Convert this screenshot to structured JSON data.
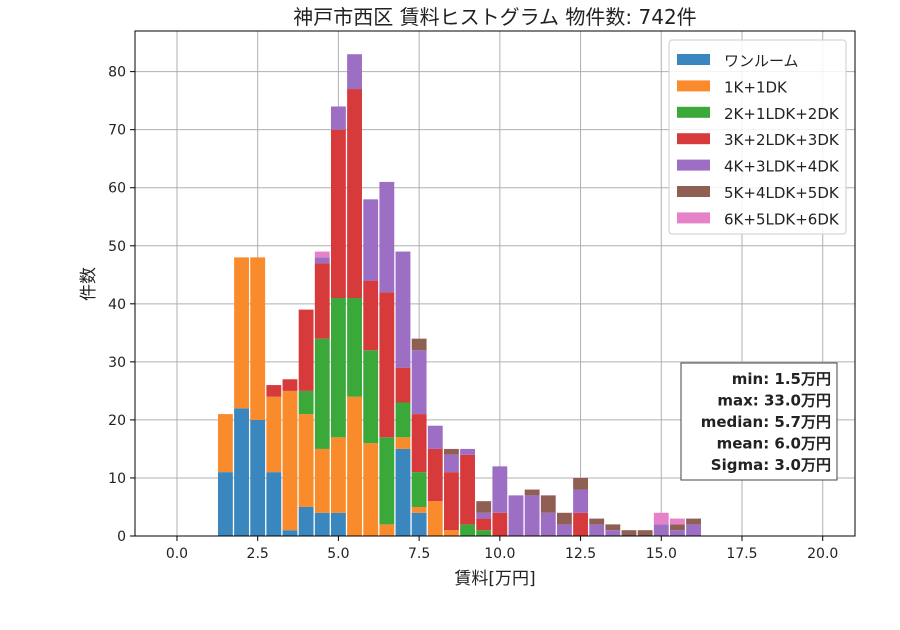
{
  "chart_data": {
    "type": "bar",
    "stacked": true,
    "title": "神戸市西区 賃料ヒストグラム  物件数: 742件",
    "xlabel": "賃料[万円]",
    "ylabel": "件数",
    "xlim": [
      -1.3,
      21.0
    ],
    "ylim": [
      0,
      87
    ],
    "x_ticks": [
      "0.0",
      "2.5",
      "5.0",
      "7.5",
      "10.0",
      "12.5",
      "15.0",
      "17.5",
      "20.0"
    ],
    "x_tick_values": [
      0,
      2.5,
      5,
      7.5,
      10,
      12.5,
      15,
      17.5,
      20
    ],
    "y_ticks": [
      "0",
      "10",
      "20",
      "30",
      "40",
      "50",
      "60",
      "70",
      "80"
    ],
    "y_tick_values": [
      0,
      10,
      20,
      30,
      40,
      50,
      60,
      70,
      80
    ],
    "grid": true,
    "legend_position": "top-right",
    "bin_width": 0.5,
    "bins": [
      1.5,
      2.0,
      2.5,
      3.0,
      3.5,
      4.0,
      4.5,
      5.0,
      5.5,
      6.0,
      6.5,
      7.0,
      7.5,
      8.0,
      8.5,
      9.0,
      9.5,
      10.0,
      10.5,
      11.0,
      11.5,
      12.0,
      12.5,
      13.0,
      13.5,
      14.0,
      14.5,
      15.0,
      15.5,
      16.0
    ],
    "series": [
      {
        "name": "ワンルーム",
        "color": "#3a86be",
        "values": [
          11,
          22,
          20,
          11,
          1,
          5,
          4,
          4,
          0,
          0,
          0,
          15,
          4,
          0,
          0,
          0,
          0,
          0,
          0,
          0,
          0,
          0,
          0,
          0,
          0,
          0,
          0,
          0,
          0,
          0
        ]
      },
      {
        "name": "1K+1DK",
        "color": "#f98b2c",
        "values": [
          10,
          26,
          28,
          13,
          24,
          16,
          11,
          13,
          24,
          16,
          2,
          2,
          1,
          6,
          1,
          0,
          0,
          0,
          0,
          0,
          0,
          0,
          0,
          0,
          0,
          0,
          0,
          0,
          0,
          0
        ]
      },
      {
        "name": "2K+1LDK+2DK",
        "color": "#3ba83a",
        "values": [
          0,
          0,
          0,
          0,
          0,
          4,
          19,
          24,
          17,
          16,
          15,
          6,
          6,
          0,
          0,
          2,
          1,
          0,
          0,
          0,
          0,
          0,
          0,
          0,
          0,
          0,
          0,
          0,
          0,
          0
        ]
      },
      {
        "name": "3K+2LDK+3DK",
        "color": "#d73a3a",
        "values": [
          0,
          0,
          0,
          2,
          2,
          14,
          13,
          29,
          36,
          12,
          25,
          6,
          10,
          9,
          10,
          12,
          2,
          4,
          0,
          0,
          0,
          0,
          4,
          0,
          0,
          0,
          0,
          0,
          0,
          0
        ]
      },
      {
        "name": "4K+3LDK+4DK",
        "color": "#9d6fc4",
        "values": [
          0,
          0,
          0,
          0,
          0,
          0,
          1,
          4,
          6,
          14,
          19,
          20,
          11,
          4,
          3,
          1,
          1,
          8,
          7,
          7,
          4,
          2,
          4,
          2,
          1,
          0,
          0,
          2,
          1,
          2
        ]
      },
      {
        "name": "5K+4LDK+5DK",
        "color": "#8f5f53",
        "values": [
          0,
          0,
          0,
          0,
          0,
          0,
          0,
          0,
          0,
          0,
          0,
          0,
          2,
          0,
          1,
          0,
          2,
          0,
          0,
          1,
          3,
          2,
          2,
          1,
          1,
          1,
          1,
          0,
          1,
          1
        ]
      },
      {
        "name": "6K+5LDK+6DK",
        "color": "#e683c8",
        "values": [
          0,
          0,
          0,
          0,
          0,
          0,
          1,
          0,
          0,
          0,
          0,
          0,
          0,
          0,
          0,
          0,
          0,
          0,
          0,
          0,
          0,
          0,
          0,
          0,
          0,
          0,
          0,
          2,
          1,
          0
        ]
      }
    ],
    "stats_box": {
      "lines": [
        "min: 1.5万円",
        "max: 33.0万円",
        "median: 5.7万円",
        "mean: 6.0万円",
        "Sigma: 3.0万円"
      ]
    }
  }
}
